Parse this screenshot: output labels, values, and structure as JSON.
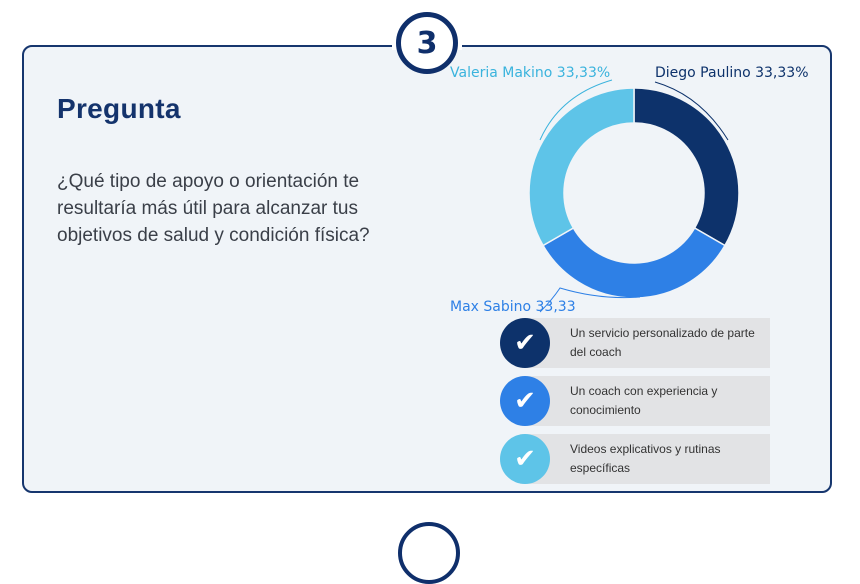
{
  "badge": {
    "number": "3"
  },
  "title": "Pregunta",
  "question": "¿Qué tipo de apoyo o orientación te resultaría más útil para alcanzar tus objetivos de salud y condición física?",
  "chart_data": {
    "type": "pie",
    "donut": true,
    "slices": [
      {
        "label": "Diego Paulino 33,33%",
        "value": 33.33,
        "color": "#0d326b"
      },
      {
        "label": "Max Sabino 33,33",
        "value": 33.33,
        "color": "#2e80e6"
      },
      {
        "label": "Valeria Makino 33,33%",
        "value": 33.33,
        "color": "#5ec4e8"
      }
    ]
  },
  "options": [
    {
      "text": "Un servicio personalizado de parte del coach",
      "color": "#0d326b",
      "icon": "check-icon"
    },
    {
      "text": "Un coach con  experiencia y conocimiento",
      "color": "#2e80e6",
      "icon": "check-icon"
    },
    {
      "text": "Videos explicativos y rutinas específicas",
      "color": "#5ec4e8",
      "icon": "check-icon"
    }
  ]
}
